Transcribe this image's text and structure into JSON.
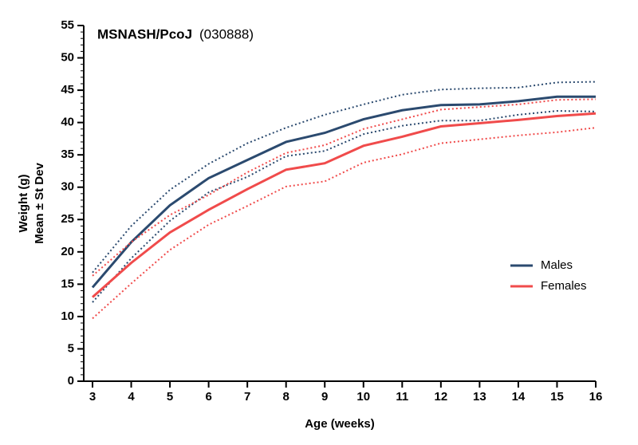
{
  "chart_data": {
    "type": "line",
    "title": "MSNASH/PcoJ",
    "subtitle": "(030888)",
    "xlabel": "Age (weeks)",
    "ylabel": [
      "Weight (g)",
      "Mean ± St Dev"
    ],
    "x": [
      3,
      4,
      5,
      6,
      7,
      8,
      9,
      10,
      11,
      12,
      13,
      14,
      15,
      16
    ],
    "xlim": [
      3,
      16
    ],
    "xticks": [
      3,
      4,
      5,
      6,
      7,
      8,
      9,
      10,
      11,
      12,
      13,
      14,
      15,
      16
    ],
    "ylim": [
      0,
      55
    ],
    "yticks": [
      0,
      5,
      10,
      15,
      20,
      25,
      30,
      35,
      40,
      45,
      50,
      55
    ],
    "y_minor_interval": 1,
    "legend": "right",
    "series": [
      {
        "name": "Males",
        "color": "#2b4a6f",
        "values": [
          14.5,
          21.5,
          27.2,
          31.4,
          34.2,
          37,
          38.4,
          40.5,
          41.9,
          42.7,
          42.8,
          43.3,
          44,
          44
        ],
        "errors": [
          2.3,
          2.5,
          2.4,
          2.2,
          2.6,
          2.2,
          2.8,
          2.3,
          2.4,
          2.4,
          2.5,
          2.1,
          2.2,
          2.3
        ]
      },
      {
        "name": "Females",
        "color": "#f04b4b",
        "values": [
          13,
          18.3,
          23,
          26.5,
          29.7,
          32.7,
          33.7,
          36.4,
          37.8,
          39.4,
          39.9,
          40.4,
          41,
          41.4
        ],
        "errors": [
          3.3,
          3.2,
          2.7,
          2.3,
          2.6,
          2.6,
          2.8,
          2.6,
          2.7,
          2.6,
          2.5,
          2.4,
          2.5,
          2.2
        ]
      }
    ]
  }
}
